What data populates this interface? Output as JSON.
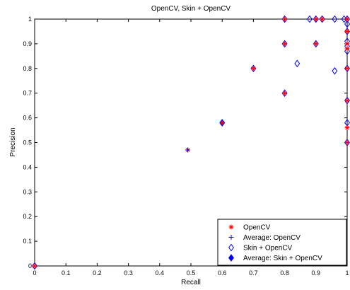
{
  "chart_data": {
    "type": "scatter",
    "title": "OpenCV, Skin + OpenCV",
    "xlabel": "Recall",
    "ylabel": "Precision",
    "xlim": [
      0,
      1
    ],
    "ylim": [
      0,
      1
    ],
    "x_ticks": [
      "0",
      "0.1",
      "0.2",
      "0.3",
      "0.4",
      "0.5",
      "0.6",
      "0.7",
      "0.8",
      "0.9",
      "1"
    ],
    "y_ticks": [
      "0",
      "0.1",
      "0.2",
      "0.3",
      "0.4",
      "0.5",
      "0.6",
      "0.7",
      "0.8",
      "0.9",
      "1"
    ],
    "grid": false,
    "legend_position": "bottom-right",
    "series": [
      {
        "name": "OpenCV",
        "marker": "asterisk",
        "color": "#ff0000",
        "points": [
          [
            0,
            0
          ],
          [
            0.49,
            0.47
          ],
          [
            0.6,
            0.58
          ],
          [
            0.7,
            0.8
          ],
          [
            0.8,
            0.7
          ],
          [
            0.8,
            0.9
          ],
          [
            0.8,
            1.0
          ],
          [
            0.9,
            0.9
          ],
          [
            0.9,
            1.0
          ],
          [
            0.92,
            1.0
          ],
          [
            1.0,
            1.0
          ],
          [
            1.0,
            0.95
          ],
          [
            1.0,
            0.9
          ],
          [
            1.0,
            0.88
          ],
          [
            1.0,
            0.8
          ],
          [
            1.0,
            0.67
          ],
          [
            1.0,
            0.56
          ],
          [
            1.0,
            0.5
          ]
        ]
      },
      {
        "name": "Average: OpenCV",
        "marker": "plus",
        "color": "#0000ff",
        "points": [
          [
            0.49,
            0.47
          ]
        ]
      },
      {
        "name": "Skin + OpenCV",
        "marker": "diamond-open",
        "color": "#0000ff",
        "points": [
          [
            0,
            0
          ],
          [
            0.6,
            0.58
          ],
          [
            0.7,
            0.8
          ],
          [
            0.8,
            0.7
          ],
          [
            0.8,
            0.9
          ],
          [
            0.8,
            1.0
          ],
          [
            0.84,
            0.82
          ],
          [
            0.88,
            1.0
          ],
          [
            0.9,
            0.9
          ],
          [
            0.9,
            1.0
          ],
          [
            0.92,
            1.0
          ],
          [
            0.96,
            0.79
          ],
          [
            0.96,
            1.0
          ],
          [
            0.99,
            1.0
          ],
          [
            1.0,
            1.0
          ],
          [
            1.0,
            0.98
          ],
          [
            1.0,
            0.95
          ],
          [
            1.0,
            0.91
          ],
          [
            1.0,
            0.89
          ],
          [
            1.0,
            0.87
          ],
          [
            1.0,
            0.8
          ],
          [
            1.0,
            0.67
          ],
          [
            1.0,
            0.58
          ],
          [
            1.0,
            0.5
          ]
        ]
      },
      {
        "name": "Average: Skin + OpenCV",
        "marker": "diamond-filled",
        "color": "#0000ff",
        "points": [
          [
            0.6,
            0.58
          ]
        ]
      }
    ]
  }
}
